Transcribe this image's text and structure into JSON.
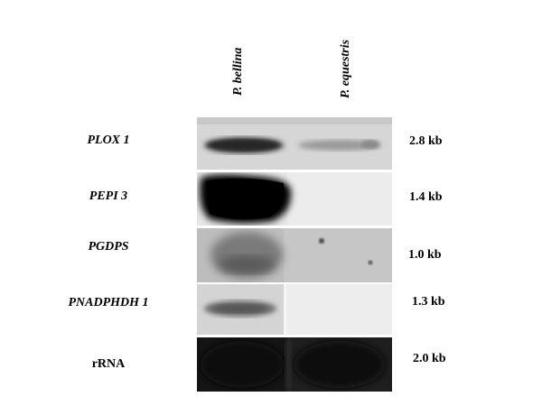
{
  "lanes": [
    "P. bellina",
    "P. equestris"
  ],
  "rows": [
    {
      "gene": "PLOX 1",
      "size": "2.8 kb"
    },
    {
      "gene": "PEPI 3",
      "size": "1.4 kb"
    },
    {
      "gene": "PGDPS",
      "size": "1.0 kb"
    },
    {
      "gene": "PNADPHDH 1",
      "size": "1.3 kb"
    },
    {
      "gene": "rRNA",
      "size": "2.0 kb"
    }
  ]
}
